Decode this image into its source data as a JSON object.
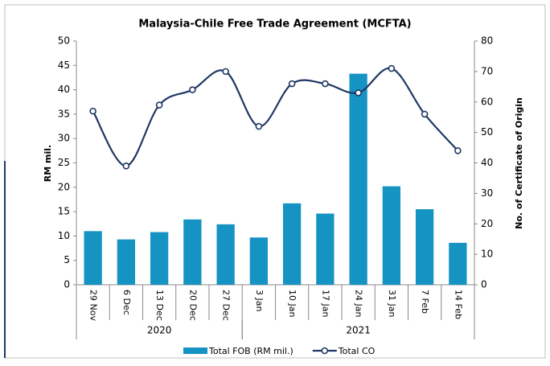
{
  "chart_data": {
    "type": "bar-line",
    "title": "Malaysia-Chile Free Trade Agreement (MCFTA)",
    "y_label": "RM mil.",
    "y2_label": "No. of Certificate of Origin",
    "categories": [
      "29 Nov",
      "6 Dec",
      "13 Dec",
      "20 Dec",
      "27 Dec",
      "3 Jan",
      "10 Jan",
      "17 Jan",
      "24 Jan",
      "31 Jan",
      "7 Feb",
      "14 Feb"
    ],
    "groups": [
      {
        "label": "2020",
        "span": 5
      },
      {
        "label": "2021",
        "span": 7
      }
    ],
    "series": [
      {
        "name": "Total FOB (RM mil.)",
        "type": "bar",
        "color": "#1593c3",
        "axis": "y",
        "values": [
          11.0,
          9.3,
          10.8,
          13.4,
          12.4,
          9.7,
          16.7,
          14.6,
          43.3,
          20.2,
          15.5,
          8.6
        ]
      },
      {
        "name": "Total CO",
        "type": "line",
        "color": "#1f3864",
        "axis": "y2",
        "values": [
          57,
          39,
          59,
          64,
          70,
          52,
          66,
          66,
          63,
          71,
          56,
          44
        ]
      }
    ],
    "ylim": [
      0,
      50
    ],
    "yticks": [
      0,
      5,
      10,
      15,
      20,
      25,
      30,
      35,
      40,
      45,
      50
    ],
    "y2lim": [
      0,
      80
    ],
    "y2ticks": [
      0,
      10,
      20,
      30,
      40,
      50,
      60,
      70,
      80
    ]
  }
}
